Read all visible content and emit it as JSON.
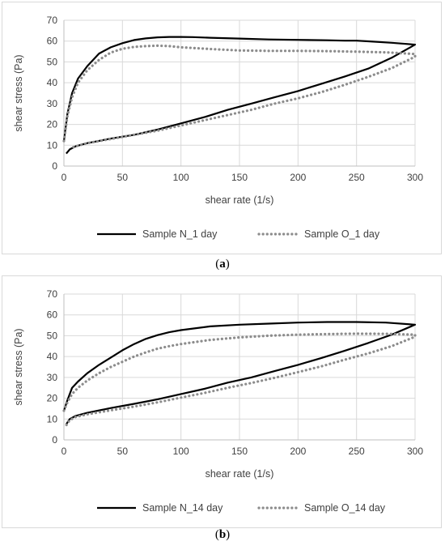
{
  "chart_data": [
    {
      "type": "line",
      "panel_label": "a",
      "xlabel": "shear rate (1/s)",
      "ylabel": "shear stress (Pa)",
      "xlim": [
        0,
        300
      ],
      "ylim": [
        0,
        70
      ],
      "xticks": [
        0,
        50,
        100,
        150,
        200,
        250,
        300
      ],
      "yticks": [
        0,
        10,
        20,
        30,
        40,
        50,
        60,
        70
      ],
      "grid": true,
      "legend_position": "bottom",
      "series": [
        {
          "name": "Sample N_1 day",
          "style": "solid",
          "color": "#000000",
          "up": {
            "x": [
              0,
              3,
              7,
              12,
              20,
              30,
              40,
              50,
              60,
              70,
              80,
              90,
              100,
              110,
              125,
              150,
              175,
              200,
              225,
              240,
              250,
              260,
              280,
              300
            ],
            "y": [
              12,
              25,
              35,
              42,
              48,
              54,
              57,
              59,
              60.5,
              61.3,
              61.8,
              62,
              62,
              61.9,
              61.6,
              61.2,
              60.8,
              60.6,
              60.4,
              60.2,
              60.2,
              59.9,
              59.2,
              58.3
            ]
          },
          "down": {
            "x": [
              300,
              280,
              260,
              240,
              220,
              200,
              180,
              160,
              140,
              120,
              100,
              80,
              60,
              40,
              20,
              10,
              5,
              2
            ],
            "y": [
              58.3,
              52,
              46.8,
              43,
              39.5,
              36,
              33,
              30,
              27,
              23.5,
              20.5,
              17.5,
              15,
              13.2,
              11,
              9.5,
              8,
              6
            ]
          }
        },
        {
          "name": "Sample O_1 day",
          "style": "dotted",
          "color": "#8c8c8c",
          "up": {
            "x": [
              0,
              3,
              7,
              12,
              20,
              30,
              40,
              50,
              60,
              70,
              80,
              90,
              100,
              125,
              150,
              175,
              200,
              225,
              250,
              275,
              300
            ],
            "y": [
              12,
              24,
              33,
              40,
              46,
              51,
              54.5,
              56.3,
              57.2,
              57.6,
              57.8,
              57.6,
              57,
              56.2,
              55.5,
              55.3,
              55.3,
              55.2,
              54.9,
              54.6,
              53.8
            ]
          },
          "down": {
            "x": [
              300,
              280,
              260,
              240,
              220,
              200,
              180,
              160,
              140,
              120,
              100,
              80,
              60,
              40,
              20,
              10,
              5
            ],
            "y": [
              52.5,
              47,
              42.8,
              39,
              35.5,
              32.5,
              30,
              27,
              24.5,
              22,
              19.5,
              17,
              15,
              13,
              11,
              9.5,
              8.5
            ]
          }
        }
      ]
    },
    {
      "type": "line",
      "panel_label": "b",
      "xlabel": "shear rate (1/s)",
      "ylabel": "shear stress (Pa)",
      "xlim": [
        0,
        300
      ],
      "ylim": [
        0,
        70
      ],
      "xticks": [
        0,
        50,
        100,
        150,
        200,
        250,
        300
      ],
      "yticks": [
        0,
        10,
        20,
        30,
        40,
        50,
        60,
        70
      ],
      "grid": true,
      "legend_position": "bottom",
      "series": [
        {
          "name": "Sample N_14 day",
          "style": "solid",
          "color": "#000000",
          "up": {
            "x": [
              0,
              3,
              7,
              12,
              20,
              30,
              40,
              50,
              60,
              70,
              80,
              90,
              100,
              125,
              150,
              175,
              200,
              225,
              250,
              275,
              300
            ],
            "y": [
              14,
              19,
              25,
              28,
              32,
              36,
              39.5,
              43,
              46,
              48.5,
              50.3,
              51.7,
              52.7,
              54.5,
              55.3,
              55.8,
              56.3,
              56.6,
              56.6,
              56.3,
              55.3
            ]
          },
          "down": {
            "x": [
              300,
              280,
              260,
              240,
              220,
              200,
              180,
              160,
              140,
              120,
              100,
              80,
              60,
              40,
              20,
              10,
              5,
              2
            ],
            "y": [
              55.3,
              50.5,
              46.5,
              42.8,
              39.3,
              36,
              33,
              30,
              27.5,
              24.5,
              22,
              19.5,
              17.3,
              15.3,
              13,
              11.5,
              10,
              7.5
            ]
          }
        },
        {
          "name": "Sample O_14 day",
          "style": "dotted",
          "color": "#8c8c8c",
          "up": {
            "x": [
              0,
              3,
              7,
              12,
              20,
              30,
              40,
              50,
              60,
              70,
              80,
              90,
              100,
              125,
              150,
              175,
              200,
              225,
              250,
              275,
              300
            ],
            "y": [
              14,
              18,
              22,
              25,
              28.5,
              32,
              35,
              37.5,
              40,
              42,
              43.8,
              45,
              46,
              48,
              49.2,
              50,
              50.5,
              50.8,
              51,
              50.9,
              50.5
            ]
          },
          "down": {
            "x": [
              300,
              280,
              260,
              240,
              220,
              200,
              180,
              160,
              140,
              120,
              100,
              80,
              60,
              40,
              20,
              10,
              5,
              2
            ],
            "y": [
              49.5,
              45,
              41.5,
              38.5,
              35.3,
              32.5,
              29.8,
              27.3,
              25,
              22.5,
              20.3,
              18,
              16,
              14.2,
              12.3,
              11,
              9.5,
              7
            ]
          }
        }
      ]
    }
  ]
}
